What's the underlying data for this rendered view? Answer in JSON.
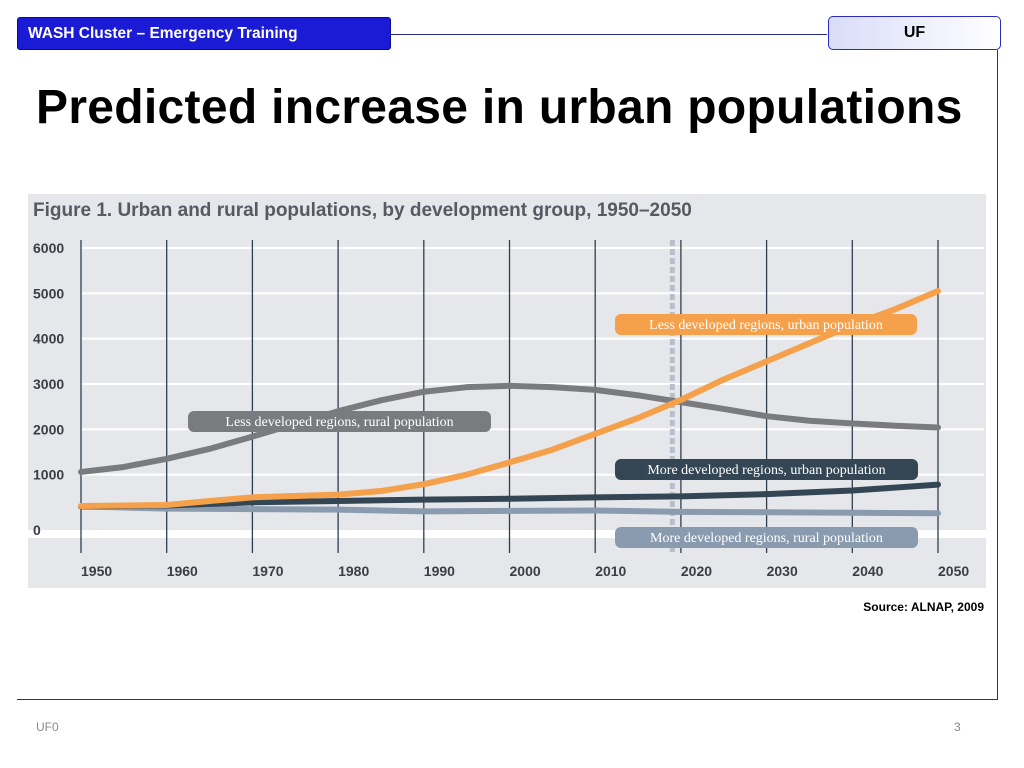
{
  "header": {
    "course_title": "WASH Cluster – Emergency Training",
    "tag": "UF"
  },
  "slide_title": "Predicted increase in urban populations",
  "source": "Source: ALNAP, 2009",
  "footer": {
    "left": "UF0",
    "page_number": "3"
  },
  "colors": {
    "header_blue": "#1b1bd6",
    "less_dev_urban": "#f5a04a",
    "less_dev_rural": "#7a7b7e",
    "more_dev_urban": "#344654",
    "more_dev_rural": "#8a9bb0"
  },
  "chart_data": {
    "type": "line",
    "title": "Figure 1. Urban and rural populations, by development group, 1950–2050",
    "xlabel": "",
    "ylabel": "",
    "xlim": [
      1950,
      2050
    ],
    "ylim": [
      0,
      6000
    ],
    "x_ticks": [
      "1950",
      "1960",
      "1970",
      "1980",
      "1990",
      "2000",
      "2010",
      "2020",
      "2030",
      "2040",
      "2050"
    ],
    "y_ticks": [
      "0",
      "1000",
      "2000",
      "3000",
      "4000",
      "5000",
      "6000"
    ],
    "grid": true,
    "projection_marker_year": 2019,
    "series": [
      {
        "name": "Less developed regions, urban population",
        "color": "#f5a04a",
        "label_style": "rounded-tag",
        "x": [
          1950,
          1955,
          1960,
          1965,
          1970,
          1975,
          1980,
          1985,
          1990,
          1995,
          2000,
          2005,
          2010,
          2015,
          2020,
          2025,
          2030,
          2035,
          2040,
          2045,
          2050
        ],
        "y": [
          310,
          320,
          330,
          420,
          500,
          530,
          560,
          640,
          790,
          1000,
          1270,
          1550,
          1900,
          2250,
          2650,
          3100,
          3500,
          3900,
          4300,
          4650,
          5050
        ]
      },
      {
        "name": "Less developed regions, rural population",
        "color": "#7a7b7e",
        "label_style": "rounded-tag",
        "x": [
          1950,
          1955,
          1960,
          1965,
          1970,
          1975,
          1980,
          1985,
          1990,
          1995,
          2000,
          2005,
          2010,
          2015,
          2020,
          2025,
          2030,
          2035,
          2040,
          2045,
          2050
        ],
        "y": [
          1060,
          1170,
          1350,
          1570,
          1840,
          2120,
          2400,
          2640,
          2830,
          2930,
          2960,
          2930,
          2870,
          2750,
          2600,
          2450,
          2290,
          2190,
          2130,
          2080,
          2040
        ]
      },
      {
        "name": "More developed regions, urban population",
        "color": "#344654",
        "label_style": "rounded-tag",
        "x": [
          1950,
          1960,
          1970,
          1980,
          1990,
          2000,
          2010,
          2020,
          2030,
          2040,
          2050
        ],
        "y": [
          300,
          320,
          390,
          420,
          450,
          470,
          500,
          520,
          570,
          650,
          780
        ]
      },
      {
        "name": "More developed regions, rural population",
        "color": "#8a9bb0",
        "label_style": "rounded-tag",
        "x": [
          1950,
          1960,
          1970,
          1980,
          1990,
          2000,
          2010,
          2020,
          2030,
          2040,
          2050
        ],
        "y": [
          300,
          250,
          240,
          230,
          190,
          200,
          210,
          180,
          170,
          160,
          150
        ]
      }
    ]
  }
}
